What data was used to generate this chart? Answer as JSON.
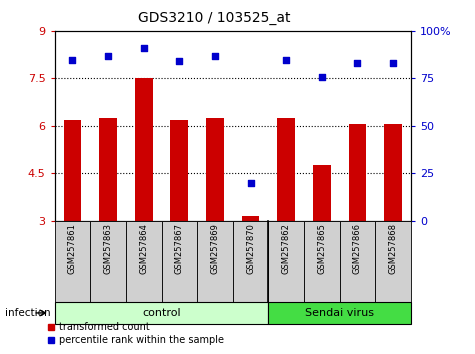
{
  "title": "GDS3210 / 103525_at",
  "samples": [
    "GSM257861",
    "GSM257863",
    "GSM257864",
    "GSM257867",
    "GSM257869",
    "GSM257870",
    "GSM257862",
    "GSM257865",
    "GSM257866",
    "GSM257868"
  ],
  "bar_values": [
    6.2,
    6.25,
    7.5,
    6.2,
    6.25,
    3.15,
    6.25,
    4.75,
    6.05,
    6.05
  ],
  "percentile_values": [
    85,
    87,
    91,
    84,
    87,
    20,
    85,
    76,
    83,
    83
  ],
  "bar_color": "#cc0000",
  "dot_color": "#0000cc",
  "ylim_left": [
    3,
    9
  ],
  "ylim_right": [
    0,
    100
  ],
  "yticks_left": [
    3,
    4.5,
    6,
    7.5,
    9
  ],
  "ytick_labels_left": [
    "3",
    "4.5",
    "6",
    "7.5",
    "9"
  ],
  "yticks_right": [
    0,
    25,
    50,
    75,
    100
  ],
  "ytick_labels_right": [
    "0",
    "25",
    "50",
    "75",
    "100%"
  ],
  "grid_dotted_lines": [
    4.5,
    6.0,
    7.5
  ],
  "groups": [
    {
      "label": "control",
      "indices": [
        0,
        1,
        2,
        3,
        4,
        5
      ],
      "color": "#ccffcc"
    },
    {
      "label": "Sendai virus",
      "indices": [
        6,
        7,
        8,
        9
      ],
      "color": "#44dd44"
    }
  ],
  "infection_label": "infection",
  "legend_items": [
    {
      "label": "transformed count",
      "color": "#cc0000"
    },
    {
      "label": "percentile rank within the sample",
      "color": "#0000cc"
    }
  ],
  "bar_width": 0.5,
  "bar_baseline": 3,
  "n_samples": 10,
  "label_box_color": "#d0d0d0",
  "label_box_border": "#000000"
}
